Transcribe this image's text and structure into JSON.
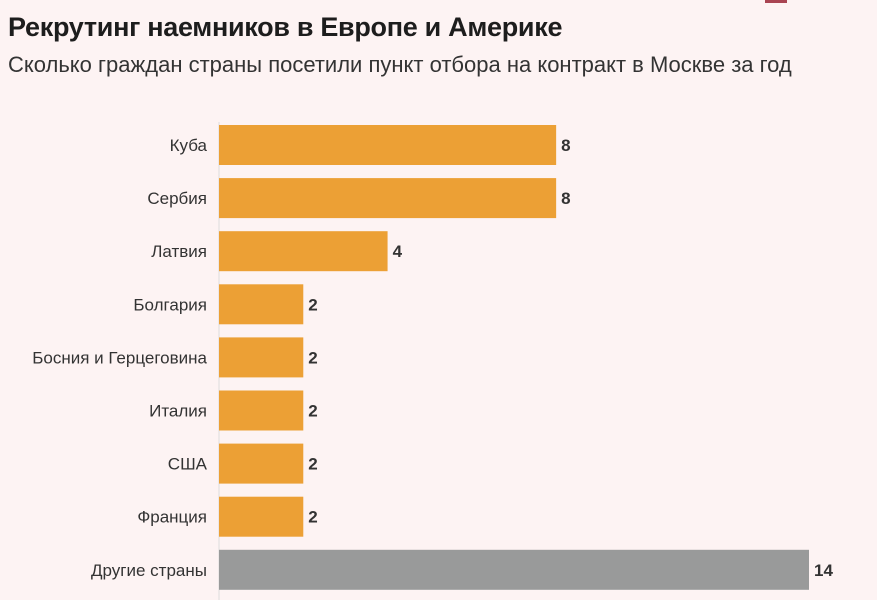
{
  "title": "Рекрутинг наемников в Европе и Америке",
  "subtitle": "Сколько граждан страны посетили пункт отбора на контракт в Москве за год",
  "chart_data": {
    "type": "bar",
    "orientation": "horizontal",
    "categories": [
      "Куба",
      "Сербия",
      "Латвия",
      "Болгария",
      "Босния и Герцеговина",
      "Италия",
      "США",
      "Франция",
      "Другие страны"
    ],
    "values": [
      8,
      8,
      4,
      2,
      2,
      2,
      2,
      2,
      14
    ],
    "colors": [
      "#eca035",
      "#eca035",
      "#eca035",
      "#eca035",
      "#eca035",
      "#eca035",
      "#eca035",
      "#eca035",
      "#999a9a"
    ],
    "xlim": [
      0,
      14
    ],
    "grid": false,
    "data_labels": true
  }
}
